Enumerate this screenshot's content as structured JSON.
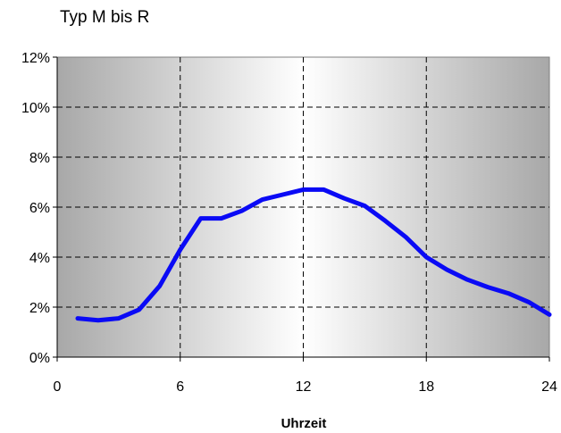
{
  "chart_data": {
    "type": "line",
    "title": "Typ M bis R",
    "xlabel": "Uhrzeit",
    "ylabel": "",
    "xlim": [
      0,
      24
    ],
    "ylim": [
      0,
      12
    ],
    "x_ticks": [
      "0",
      "6",
      "12",
      "18",
      "24"
    ],
    "y_ticks": [
      "0%",
      "2%",
      "4%",
      "6%",
      "8%",
      "10%",
      "12%"
    ],
    "grid": true,
    "legend": "none",
    "series": [
      {
        "color": "#0a0af5",
        "x": [
          1,
          2,
          3,
          4,
          5,
          6,
          7,
          8,
          9,
          10,
          11,
          12,
          13,
          14,
          15,
          16,
          17,
          18,
          19,
          20,
          21,
          22,
          23,
          24
        ],
        "y": [
          1.55,
          1.47,
          1.55,
          1.9,
          2.85,
          4.3,
          5.55,
          5.55,
          5.85,
          6.3,
          6.5,
          6.7,
          6.7,
          6.35,
          6.05,
          5.45,
          4.8,
          4.0,
          3.5,
          3.1,
          2.8,
          2.55,
          2.2,
          1.7
        ]
      }
    ]
  }
}
